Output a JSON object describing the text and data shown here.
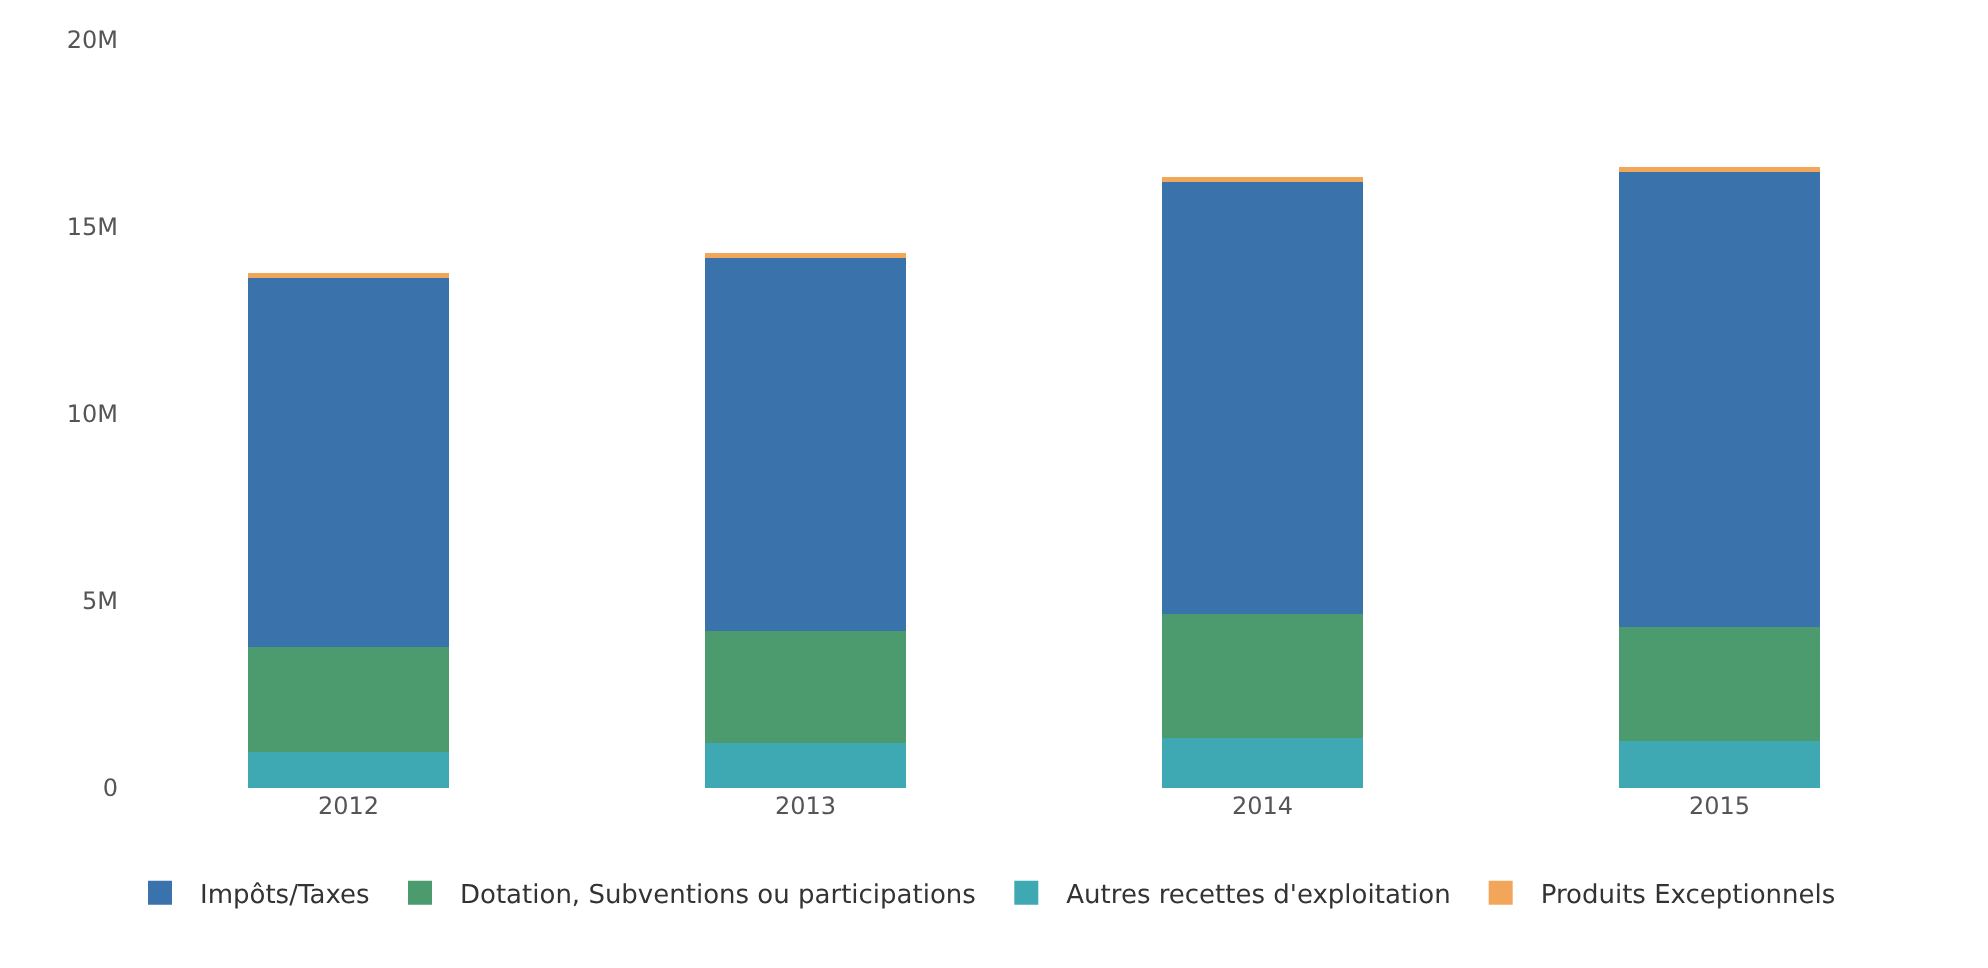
{
  "chart_data": {
    "type": "bar",
    "stacked": true,
    "categories": [
      "2012",
      "2013",
      "2014",
      "2015"
    ],
    "series": [
      {
        "name": "Autres recettes d'exploitation",
        "color": "#3ea9b3",
        "values": [
          0.97,
          1.2,
          1.35,
          1.25
        ]
      },
      {
        "name": "Dotation, Subventions ou participations",
        "color": "#4b9b6f",
        "values": [
          2.8,
          3.0,
          3.3,
          3.05
        ]
      },
      {
        "name": "Impôts/Taxes",
        "color": "#3a72ab",
        "values": [
          9.9,
          10.0,
          11.6,
          12.2
        ]
      },
      {
        "name": "Produits Exceptionnels",
        "color": "#f2a65a",
        "values": [
          0.1,
          0.1,
          0.1,
          0.1
        ]
      }
    ],
    "ylim": [
      0,
      20
    ],
    "yticks": [
      {
        "value": 0,
        "label": "0"
      },
      {
        "value": 5,
        "label": "5M"
      },
      {
        "value": 10,
        "label": "10M"
      },
      {
        "value": 15,
        "label": "15M"
      },
      {
        "value": 20,
        "label": "20M"
      }
    ],
    "legend": "bottom"
  }
}
